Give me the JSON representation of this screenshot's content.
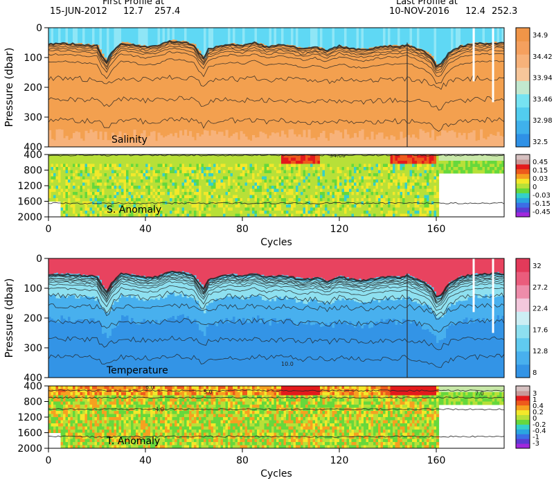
{
  "header": {
    "first_label": "First Profile at",
    "first_date": "15-JUN-2012",
    "first_lat": "12.7",
    "first_lon": "257.4",
    "last_label": "Last Profile at",
    "last_date": "10-NOV-2016",
    "last_lat": "12.4",
    "last_lon": "252.3"
  },
  "colors": {
    "salinity_scale": [
      "#2f91e6",
      "#3fb1ec",
      "#52cdef",
      "#76e3f2",
      "#c2e8cf",
      "#f7c69a",
      "#f7b27a",
      "#f5a05e",
      "#f09548"
    ],
    "anomaly_scale": [
      "#a028dc",
      "#5a3cd2",
      "#3c6ee6",
      "#2aa6e0",
      "#35d0c8",
      "#66d83c",
      "#b8e038",
      "#f3e82a",
      "#f6a020",
      "#ee5a1c",
      "#e31a1c",
      "#c89898",
      "#d6c0c0"
    ],
    "temperature_scale": [
      "#3394e6",
      "#48b0ee",
      "#60cbf0",
      "#8ee0f0",
      "#cceef4",
      "#f3c8dc",
      "#ee8caa",
      "#ea5c7c",
      "#e33a5a"
    ],
    "mixed_layer_salinity": "#5fd8f4",
    "interior_salinity": "#f3a04f",
    "surface_temperature": "#e8435f"
  },
  "chart_data": [
    {
      "type": "heatmap",
      "title": "Salinity",
      "xlabel": "",
      "ylabel": "Pressure (dbar)",
      "xlim": [
        0,
        188
      ],
      "ylim": [
        400,
        0
      ],
      "yticks": [
        0,
        100,
        200,
        300,
        400
      ],
      "colorbar": {
        "levels": [
          "34.9",
          "34.42",
          "33.94",
          "33.46",
          "32.98",
          "32.5"
        ],
        "range": [
          32.5,
          35.2
        ]
      },
      "mixed_layer_depth": {
        "cycle": [
          0,
          5,
          10,
          15,
          20,
          22,
          24,
          26,
          30,
          35,
          40,
          45,
          50,
          55,
          60,
          62,
          64,
          66,
          70,
          75,
          80,
          85,
          90,
          95,
          100,
          105,
          110,
          115,
          120,
          125,
          130,
          135,
          140,
          145,
          148,
          150,
          155,
          158,
          160,
          162,
          165,
          170,
          175,
          180,
          185,
          188
        ],
        "pressure": [
          52,
          50,
          52,
          55,
          58,
          90,
          110,
          80,
          48,
          55,
          62,
          58,
          42,
          45,
          55,
          80,
          100,
          70,
          60,
          52,
          58,
          48,
          62,
          56,
          60,
          70,
          62,
          75,
          58,
          68,
          72,
          65,
          60,
          60,
          55,
          62,
          78,
          95,
          125,
          120,
          82,
          60,
          52,
          50,
          48,
          50
        ]
      }
    },
    {
      "type": "heatmap",
      "title": "S. Anomaly",
      "xlabel": "Cycles",
      "ylabel": "",
      "xlim": [
        0,
        188
      ],
      "ylim": [
        2000,
        400
      ],
      "yticks": [
        400,
        800,
        1200,
        1600,
        2000
      ],
      "xticks": [
        0,
        40,
        80,
        120,
        160
      ],
      "contour_label": "34.60",
      "colorbar": {
        "levels": [
          "0.45",
          "0.15",
          "0.03",
          "0",
          "-0.03",
          "-0.15",
          "-0.45"
        ],
        "range": [
          -0.45,
          0.45
        ]
      }
    },
    {
      "type": "heatmap",
      "title": "Temperature",
      "xlabel": "",
      "ylabel": "Pressure (dbar)",
      "xlim": [
        0,
        188
      ],
      "ylim": [
        400,
        0
      ],
      "yticks": [
        0,
        100,
        200,
        300,
        400
      ],
      "contour_label": "10.0",
      "colorbar": {
        "levels": [
          "32",
          "27.2",
          "22.4",
          "17.6",
          "12.8",
          "8"
        ],
        "range": [
          8,
          32
        ]
      }
    },
    {
      "type": "heatmap",
      "title": "T. Anomaly",
      "xlabel": "Cycles",
      "ylabel": "",
      "xlim": [
        0,
        188
      ],
      "ylim": [
        2000,
        400
      ],
      "yticks": [
        400,
        800,
        1200,
        1600,
        2000
      ],
      "xticks": [
        0,
        40,
        80,
        120,
        160
      ],
      "contour_labels": [
        "6.0",
        "5.0",
        "4.0",
        "7.0"
      ],
      "colorbar": {
        "levels": [
          "3",
          "1",
          "0.4",
          "0.2",
          "0",
          "-0.2",
          "-0.4",
          "-1",
          "-3"
        ],
        "range": [
          -3,
          3
        ]
      }
    }
  ]
}
